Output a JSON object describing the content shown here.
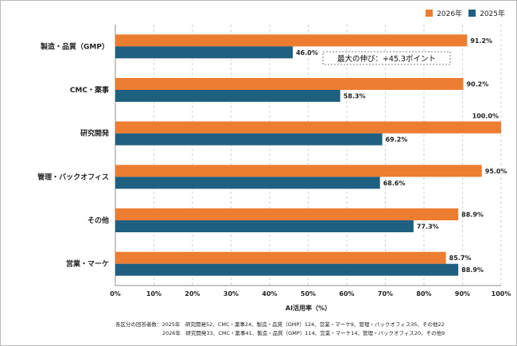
{
  "chart_data": {
    "type": "bar",
    "orientation": "horizontal",
    "categories": [
      "製造・品質（GMP）",
      "CMC・薬事",
      "研究開発",
      "管理・バックオフィス",
      "その他",
      "営業・マーケ"
    ],
    "series": [
      {
        "name": "2026年",
        "color": "#ED7D31",
        "values": [
          91.2,
          90.2,
          100.0,
          95.0,
          88.9,
          85.7
        ]
      },
      {
        "name": "2025年",
        "color": "#1F5F7F",
        "values": [
          46.0,
          58.3,
          69.2,
          68.6,
          77.3,
          88.9
        ]
      }
    ],
    "value_labels": {
      "2026年": [
        "91.2%",
        "90.2%",
        "100.0%",
        "95.0%",
        "88.9%",
        "85.7%"
      ],
      "2025年": [
        "46.0%",
        "58.3%",
        "69.2%",
        "68.6%",
        "77.3%",
        "88.9%"
      ]
    },
    "xlim": [
      0,
      100
    ],
    "xticks": [
      "0%",
      "10%",
      "20%",
      "30%",
      "40%",
      "50%",
      "60%",
      "70%",
      "80%",
      "90%",
      "100%"
    ],
    "xlabel": "AI活用率（%）",
    "grid": "vertical dashed",
    "legend_position": "top-right",
    "annotation": "最大の伸び：+45.3ポイント"
  },
  "notes": {
    "line1": "各区分の回答者数：2025年　研究開発52、CMC・薬事24、製造・品質（GMP）124、営業・マーケ9、管理・バックオフィス35、その他22",
    "line2": "2026年　研究開発33、CMC・薬事41、製造・品質（GMP）114、営業・マーケ14、管理・バックオフィス20、その他9"
  }
}
